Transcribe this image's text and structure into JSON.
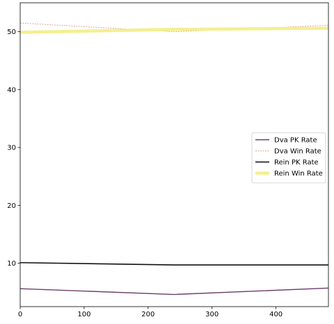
{
  "chart_data": {
    "type": "line",
    "title": "",
    "xlabel": "",
    "ylabel": "",
    "xlim": [
      0,
      482
    ],
    "ylim": [
      2.5,
      55
    ],
    "xticks": [
      0,
      100,
      200,
      300,
      400
    ],
    "yticks": [
      10,
      20,
      30,
      40,
      50
    ],
    "grid": false,
    "legend_position": "right",
    "series": [
      {
        "name": "Dva PK Rate",
        "color": "#6b3f6b",
        "width": 1.4,
        "dash": "",
        "x": [
          0,
          241,
          482
        ],
        "y": [
          5.6,
          4.6,
          5.7
        ]
      },
      {
        "name": "Dva Win Rate",
        "color": "#d99a8e",
        "width": 0.9,
        "dash": "2,1.5",
        "x": [
          0,
          241,
          482
        ],
        "y": [
          51.5,
          50.0,
          51.1
        ]
      },
      {
        "name": "Rein PK Rate",
        "color": "#111111",
        "width": 1.6,
        "dash": "",
        "x": [
          0,
          241,
          482
        ],
        "y": [
          10.1,
          9.7,
          9.7
        ]
      },
      {
        "name": "Rein Win Rate",
        "color": "#f4ef8f",
        "width": 4.5,
        "dash": "",
        "x": [
          0,
          241,
          482
        ],
        "y": [
          49.9,
          50.4,
          50.6
        ]
      }
    ]
  }
}
